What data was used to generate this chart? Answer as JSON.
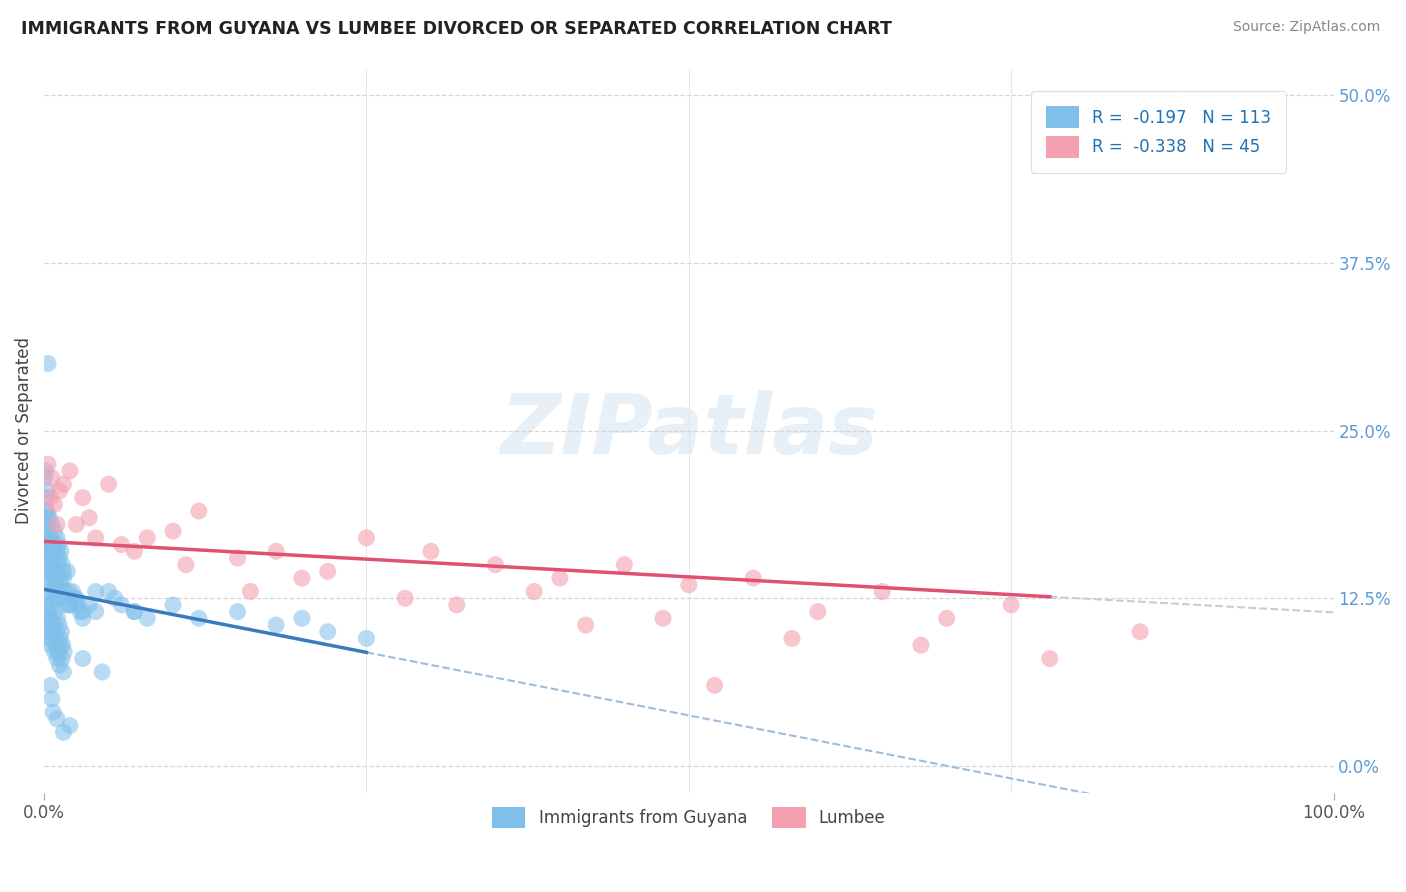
{
  "title": "IMMIGRANTS FROM GUYANA VS LUMBEE DIVORCED OR SEPARATED CORRELATION CHART",
  "source_text": "Source: ZipAtlas.com",
  "ylabel": "Divorced or Separated",
  "xlim": [
    0.0,
    100.0
  ],
  "ylim": [
    -2.0,
    52.0
  ],
  "right_ytick_labels": [
    "0.0%",
    "12.5%",
    "25.0%",
    "37.5%",
    "50.0%"
  ],
  "right_ytick_values": [
    0.0,
    12.5,
    25.0,
    37.5,
    50.0
  ],
  "blue_color": "#7fbfea",
  "blue_line_color": "#3a7abf",
  "pink_color": "#f4a0b0",
  "pink_line_color": "#e05070",
  "dashed_color": "#a0bcd8",
  "legend_blue_label": "R =  -0.197   N = 113",
  "legend_pink_label": "R =  -0.338   N = 45",
  "legend_blue_series": "Immigrants from Guyana",
  "legend_pink_series": "Lumbee",
  "blue_R": -0.197,
  "blue_N": 113,
  "pink_R": -0.338,
  "pink_N": 45,
  "watermark": "ZIPatlas",
  "background_color": "#ffffff",
  "grid_color": "#cccccc",
  "blue_scatter_x": [
    0.1,
    0.15,
    0.2,
    0.25,
    0.3,
    0.35,
    0.4,
    0.45,
    0.5,
    0.55,
    0.6,
    0.65,
    0.7,
    0.75,
    0.8,
    0.85,
    0.9,
    0.95,
    1.0,
    1.1,
    1.2,
    1.3,
    1.4,
    1.5,
    1.6,
    1.7,
    1.8,
    1.9,
    2.0,
    2.2,
    2.4,
    2.6,
    2.8,
    3.0,
    3.5,
    4.0,
    5.0,
    6.0,
    7.0,
    8.0,
    0.1,
    0.2,
    0.3,
    0.4,
    0.5,
    0.6,
    0.7,
    0.8,
    0.9,
    1.0,
    1.1,
    1.2,
    1.3,
    1.4,
    1.5,
    0.1,
    0.2,
    0.3,
    0.4,
    0.5,
    0.6,
    0.7,
    0.8,
    0.9,
    1.0,
    1.1,
    1.2,
    1.3,
    1.4,
    1.5,
    0.15,
    0.25,
    0.35,
    0.45,
    0.55,
    0.65,
    0.75,
    0.85,
    0.95,
    1.05,
    1.15,
    1.25,
    1.35,
    1.45,
    1.55,
    2.5,
    3.0,
    0.05,
    0.1,
    0.15,
    0.2,
    0.25,
    0.3,
    2.0,
    4.0,
    5.5,
    7.0,
    10.0,
    12.0,
    15.0,
    18.0,
    20.0,
    22.0,
    25.0,
    0.5,
    0.6,
    0.7,
    1.0,
    1.5,
    2.0,
    3.0,
    4.5,
    0.3
  ],
  "blue_scatter_y": [
    16.0,
    15.5,
    17.0,
    16.5,
    14.5,
    15.0,
    13.5,
    16.0,
    14.0,
    15.5,
    14.5,
    16.5,
    15.0,
    14.0,
    13.0,
    14.5,
    13.5,
    12.5,
    16.0,
    15.0,
    14.0,
    13.5,
    12.5,
    14.0,
    13.0,
    12.0,
    14.5,
    13.0,
    12.0,
    13.0,
    12.5,
    12.0,
    11.5,
    11.0,
    12.0,
    11.5,
    13.0,
    12.0,
    11.5,
    11.0,
    18.0,
    19.0,
    17.5,
    18.5,
    17.0,
    18.0,
    16.5,
    17.5,
    16.0,
    17.0,
    16.5,
    15.5,
    16.0,
    15.0,
    14.5,
    10.0,
    9.5,
    11.0,
    10.5,
    9.0,
    10.0,
    9.5,
    8.5,
    9.0,
    8.0,
    8.5,
    7.5,
    9.0,
    8.0,
    7.0,
    12.0,
    13.0,
    11.5,
    12.5,
    11.0,
    12.0,
    10.5,
    11.5,
    10.0,
    11.0,
    10.5,
    9.5,
    10.0,
    9.0,
    8.5,
    12.5,
    11.5,
    21.5,
    22.0,
    20.0,
    19.0,
    20.5,
    18.5,
    12.0,
    13.0,
    12.5,
    11.5,
    12.0,
    11.0,
    11.5,
    10.5,
    11.0,
    10.0,
    9.5,
    6.0,
    5.0,
    4.0,
    3.5,
    2.5,
    3.0,
    8.0,
    7.0,
    30.0
  ],
  "pink_scatter_x": [
    0.5,
    1.0,
    2.0,
    3.0,
    5.0,
    8.0,
    12.0,
    18.0,
    25.0,
    35.0,
    45.0,
    55.0,
    65.0,
    75.0,
    0.8,
    1.5,
    3.5,
    6.0,
    10.0,
    15.0,
    22.0,
    30.0,
    40.0,
    50.0,
    60.0,
    70.0,
    0.3,
    0.6,
    1.2,
    2.5,
    4.0,
    7.0,
    11.0,
    16.0,
    20.0,
    28.0,
    38.0,
    48.0,
    58.0,
    68.0,
    78.0,
    85.0,
    32.0,
    42.0,
    52.0
  ],
  "pink_scatter_y": [
    20.0,
    18.0,
    22.0,
    20.0,
    21.0,
    17.0,
    19.0,
    16.0,
    17.0,
    15.0,
    15.0,
    14.0,
    13.0,
    12.0,
    19.5,
    21.0,
    18.5,
    16.5,
    17.5,
    15.5,
    14.5,
    16.0,
    14.0,
    13.5,
    11.5,
    11.0,
    22.5,
    21.5,
    20.5,
    18.0,
    17.0,
    16.0,
    15.0,
    13.0,
    14.0,
    12.5,
    13.0,
    11.0,
    9.5,
    9.0,
    8.0,
    10.0,
    12.0,
    10.5,
    6.0
  ]
}
